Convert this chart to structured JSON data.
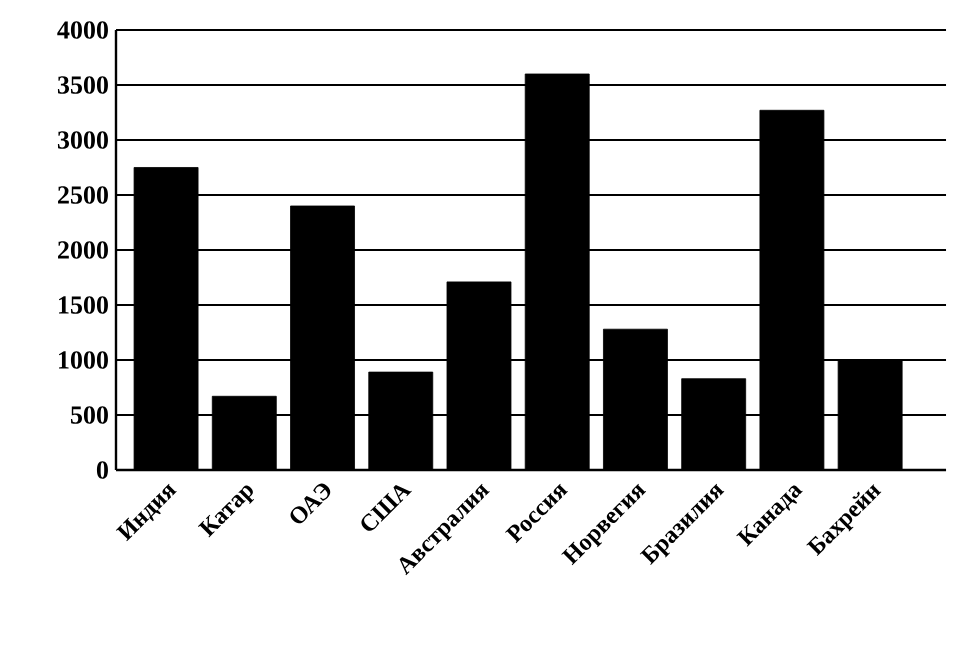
{
  "chart_data": {
    "type": "bar",
    "categories": [
      "Индия",
      "Катар",
      "ОАЭ",
      "США",
      "Австралия",
      "Россия",
      "Норвегия",
      "Бразилия",
      "Канада",
      "Бахрейн"
    ],
    "values": [
      2750,
      670,
      2400,
      890,
      1710,
      3600,
      1280,
      830,
      3270,
      1000
    ],
    "color": "#000000",
    "ylim": [
      0,
      4000
    ],
    "yticks": [
      0,
      500,
      1000,
      1500,
      2000,
      2500,
      3000,
      3500,
      4000
    ],
    "grid": "y"
  }
}
